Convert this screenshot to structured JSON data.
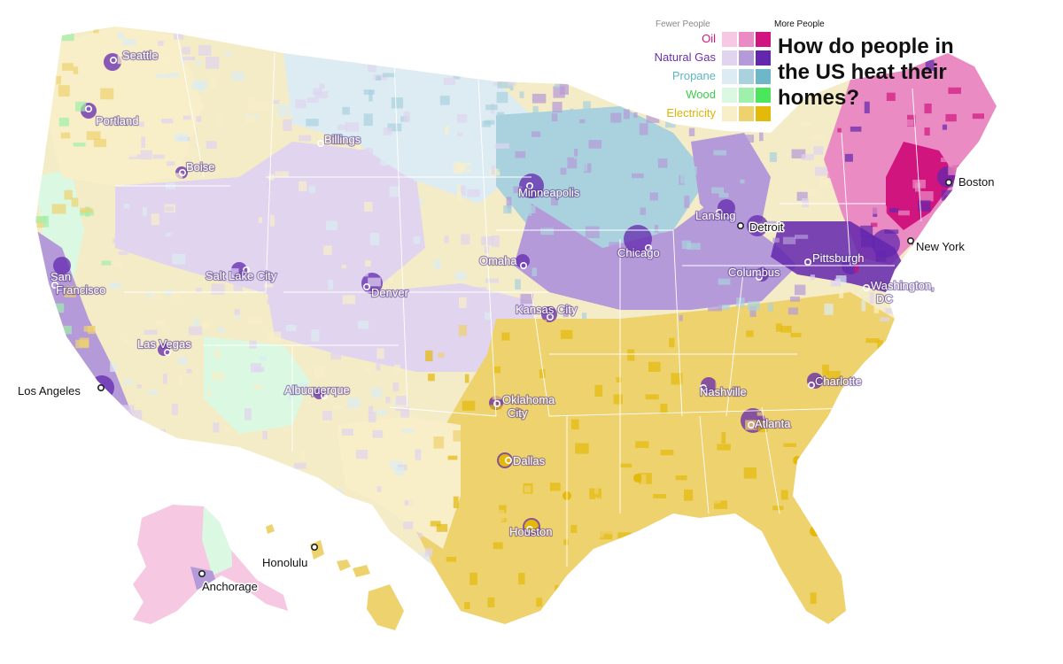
{
  "title": "How do people in the US heat their homes?",
  "legend": {
    "low_label": "Fewer People",
    "high_label": "More People",
    "categories": [
      {
        "name": "Oil",
        "label_color": "#d4177f",
        "shades": [
          "#f6c8e2",
          "#ea8cc3",
          "#d0157f"
        ]
      },
      {
        "name": "Natural Gas",
        "label_color": "#6a2fb0",
        "shades": [
          "#e0d4ef",
          "#b59ad9",
          "#6327ad"
        ]
      },
      {
        "name": "Propane",
        "label_color": "#5ab5c0",
        "shades": [
          "#dcecf2",
          "#a9d2de",
          "#6cb8c8"
        ]
      },
      {
        "name": "Wood",
        "label_color": "#3ccf4a",
        "shades": [
          "#dbf8e2",
          "#9ff0ab",
          "#4be65c"
        ]
      },
      {
        "name": "Electricity",
        "label_color": "#e0b300",
        "shades": [
          "#f8efc9",
          "#eed26e",
          "#e3b90a"
        ]
      }
    ]
  },
  "colors": {
    "land_base": "#f4ecc7",
    "state_border": "#ffffff"
  },
  "cities": [
    {
      "name": "Seattle",
      "style": "light"
    },
    {
      "name": "Portland",
      "style": "light"
    },
    {
      "name": "Boise",
      "style": "light"
    },
    {
      "name": "Billings",
      "style": "light"
    },
    {
      "name": "Minneapolis",
      "style": "light"
    },
    {
      "name": "Lansing",
      "style": "light"
    },
    {
      "name": "Detroit",
      "style": "dark"
    },
    {
      "name": "Boston",
      "style": "dark"
    },
    {
      "name": "New York",
      "style": "dark"
    },
    {
      "name": "Chicago",
      "style": "light"
    },
    {
      "name": "Omaha",
      "style": "light"
    },
    {
      "name": "Columbus",
      "style": "light"
    },
    {
      "name": "Pittsburgh",
      "style": "light"
    },
    {
      "name": "Washington, DC",
      "style": "light"
    },
    {
      "name": "San Francisco",
      "style": "light"
    },
    {
      "name": "Salt Lake City",
      "style": "light"
    },
    {
      "name": "Denver",
      "style": "light"
    },
    {
      "name": "Kansas City",
      "style": "light"
    },
    {
      "name": "Las Vegas",
      "style": "light"
    },
    {
      "name": "Los Angeles",
      "style": "dark"
    },
    {
      "name": "Albuquerque",
      "style": "light"
    },
    {
      "name": "Oklahoma City",
      "style": "light"
    },
    {
      "name": "Nashville",
      "style": "light"
    },
    {
      "name": "Charlotte",
      "style": "light"
    },
    {
      "name": "Atlanta",
      "style": "light"
    },
    {
      "name": "Dallas",
      "style": "light"
    },
    {
      "name": "Houston",
      "style": "light"
    },
    {
      "name": "Honolulu",
      "style": "dark"
    },
    {
      "name": "Anchorage",
      "style": "dark"
    }
  ]
}
